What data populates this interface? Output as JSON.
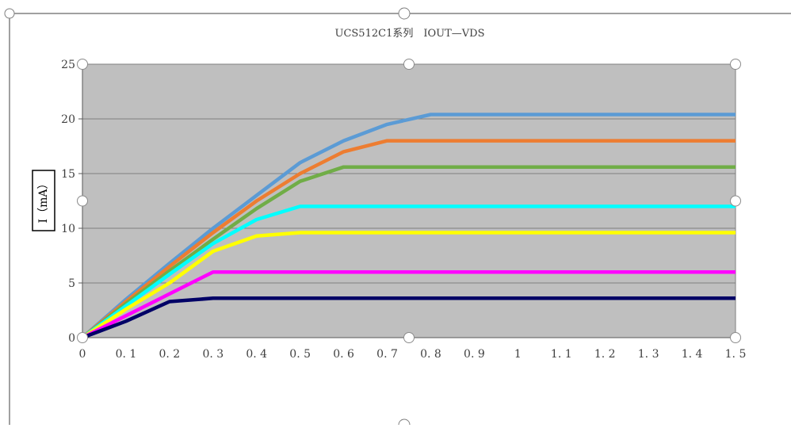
{
  "chart_data": {
    "type": "line",
    "title": "UCS512C1系列　IOUT—VDS",
    "xlabel": "",
    "ylabel": "I（mA）",
    "xlim": [
      0,
      1.5
    ],
    "ylim": [
      0,
      25
    ],
    "x_ticks": [
      "0",
      "0. 1",
      "0. 2",
      "0. 3",
      "0. 4",
      "0. 5",
      "0. 6",
      "0. 7",
      "0. 8",
      "0. 9",
      "1",
      "1. 1",
      "1. 2",
      "1. 3",
      "1. 4",
      "1. 5"
    ],
    "x_tick_values": [
      0,
      0.1,
      0.2,
      0.3,
      0.4,
      0.5,
      0.6,
      0.7,
      0.8,
      0.9,
      1.0,
      1.1,
      1.2,
      1.3,
      1.4,
      1.5
    ],
    "y_ticks": [
      "0",
      "5",
      "10",
      "15",
      "20",
      "25"
    ],
    "y_tick_values": [
      0,
      5,
      10,
      15,
      20,
      25
    ],
    "grid": "horizontal",
    "legend": "none",
    "plot_background": "#bfbfbf",
    "series": [
      {
        "color": "#5b9bd5",
        "x": [
          0,
          0.1,
          0.2,
          0.3,
          0.4,
          0.5,
          0.6,
          0.7,
          0.8,
          0.9,
          1.0,
          1.1,
          1.2,
          1.3,
          1.4,
          1.5
        ],
        "values": [
          0,
          3.5,
          6.8,
          10.0,
          13.0,
          16.0,
          18.0,
          19.5,
          20.4,
          20.4,
          20.4,
          20.4,
          20.4,
          20.4,
          20.4,
          20.4
        ]
      },
      {
        "color": "#ed7d31",
        "x": [
          0,
          0.1,
          0.2,
          0.3,
          0.4,
          0.5,
          0.6,
          0.7,
          0.8,
          0.9,
          1.0,
          1.1,
          1.2,
          1.3,
          1.4,
          1.5
        ],
        "values": [
          0,
          3.3,
          6.5,
          9.6,
          12.5,
          15.0,
          17.0,
          18.0,
          18.0,
          18.0,
          18.0,
          18.0,
          18.0,
          18.0,
          18.0,
          18.0
        ]
      },
      {
        "color": "#70ad47",
        "x": [
          0,
          0.1,
          0.2,
          0.3,
          0.4,
          0.5,
          0.6,
          0.7,
          0.8,
          0.9,
          1.0,
          1.1,
          1.2,
          1.3,
          1.4,
          1.5
        ],
        "values": [
          0,
          3.1,
          6.1,
          9.0,
          11.8,
          14.3,
          15.6,
          15.6,
          15.6,
          15.6,
          15.6,
          15.6,
          15.6,
          15.6,
          15.6,
          15.6
        ]
      },
      {
        "color": "#00ffff",
        "x": [
          0,
          0.1,
          0.2,
          0.3,
          0.4,
          0.5,
          0.6,
          0.7,
          0.8,
          0.9,
          1.0,
          1.1,
          1.2,
          1.3,
          1.4,
          1.5
        ],
        "values": [
          0,
          2.9,
          5.8,
          8.6,
          10.8,
          12.0,
          12.0,
          12.0,
          12.0,
          12.0,
          12.0,
          12.0,
          12.0,
          12.0,
          12.0,
          12.0
        ]
      },
      {
        "color": "#ffff00",
        "x": [
          0,
          0.1,
          0.2,
          0.3,
          0.4,
          0.5,
          0.6,
          0.7,
          0.8,
          0.9,
          1.0,
          1.1,
          1.2,
          1.3,
          1.4,
          1.5
        ],
        "values": [
          0,
          2.6,
          5.0,
          7.9,
          9.3,
          9.6,
          9.6,
          9.6,
          9.6,
          9.6,
          9.6,
          9.6,
          9.6,
          9.6,
          9.6,
          9.6
        ]
      },
      {
        "color": "#ff00ff",
        "x": [
          0,
          0.1,
          0.2,
          0.3,
          0.4,
          0.5,
          0.6,
          0.7,
          0.8,
          0.9,
          1.0,
          1.1,
          1.2,
          1.3,
          1.4,
          1.5
        ],
        "values": [
          0,
          2.0,
          4.0,
          6.0,
          6.0,
          6.0,
          6.0,
          6.0,
          6.0,
          6.0,
          6.0,
          6.0,
          6.0,
          6.0,
          6.0,
          6.0
        ]
      },
      {
        "color": "#000066",
        "x": [
          0,
          0.1,
          0.2,
          0.3,
          0.4,
          0.5,
          0.6,
          0.7,
          0.8,
          0.9,
          1.0,
          1.1,
          1.2,
          1.3,
          1.4,
          1.5
        ],
        "values": [
          0,
          1.5,
          3.3,
          3.6,
          3.6,
          3.6,
          3.6,
          3.6,
          3.6,
          3.6,
          3.6,
          3.6,
          3.6,
          3.6,
          3.6,
          3.6
        ]
      }
    ]
  }
}
